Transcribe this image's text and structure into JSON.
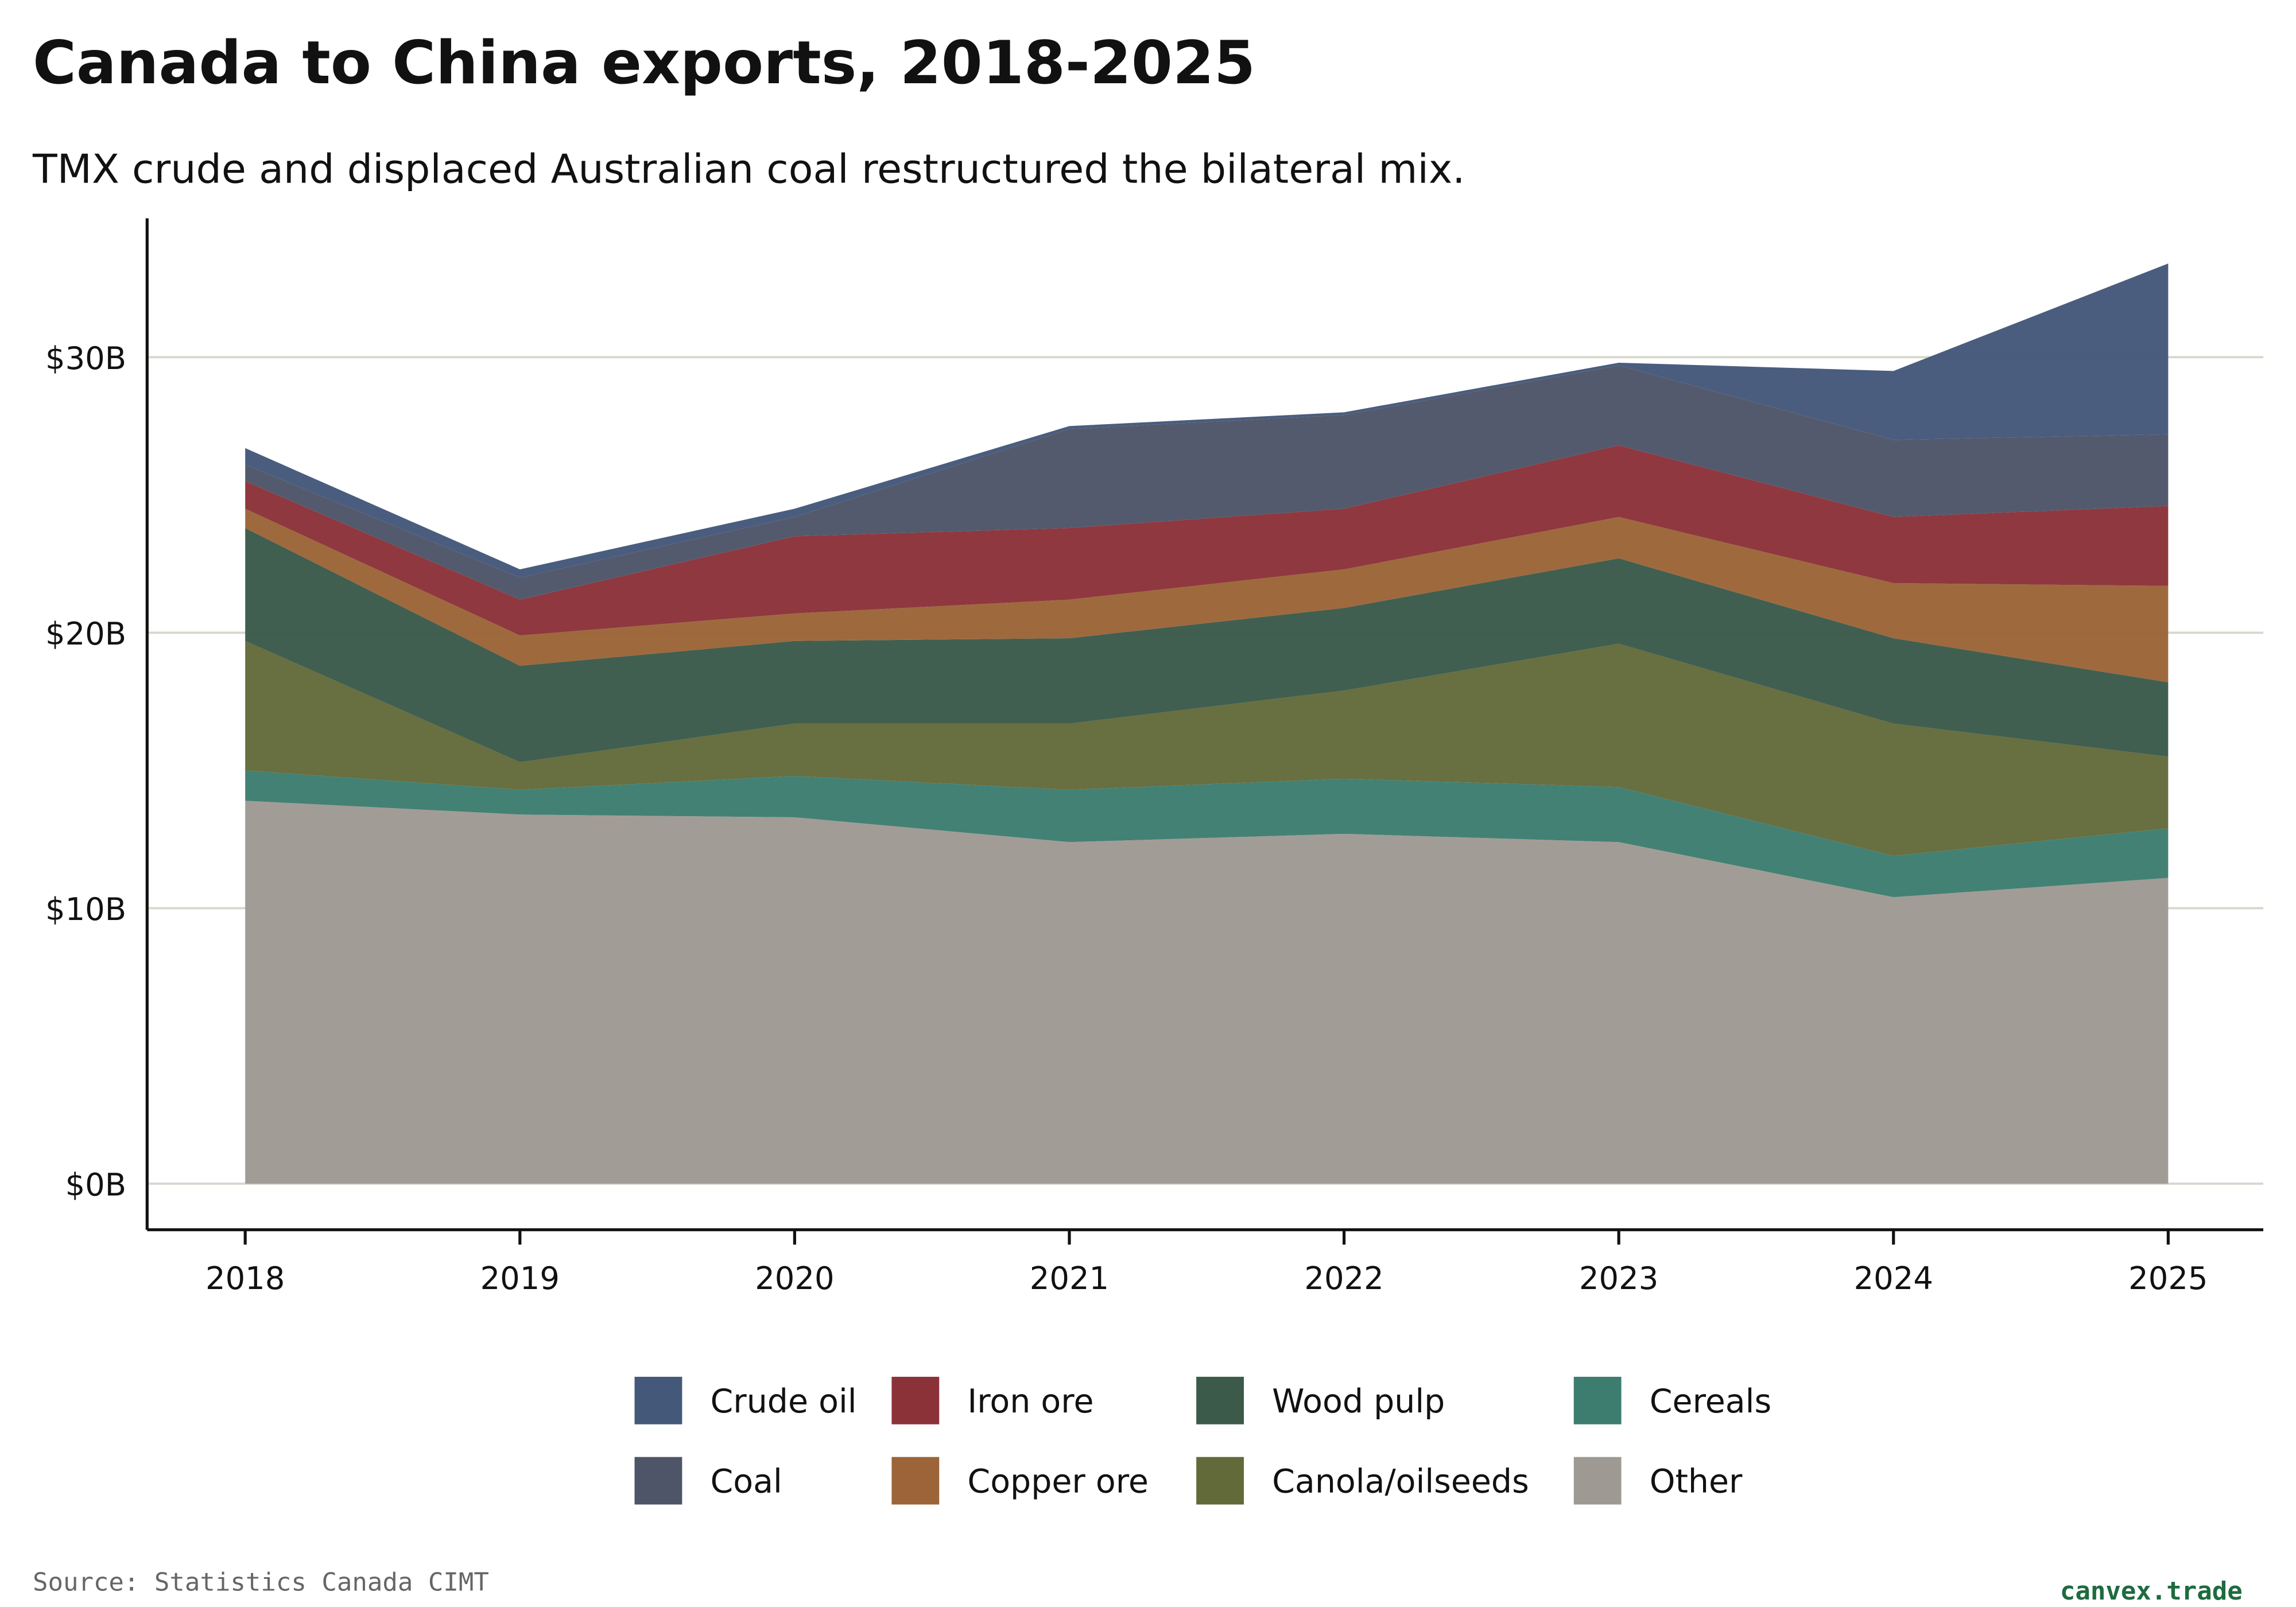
{
  "title": "Canada to China exports, 2018-2025",
  "subtitle": "TMX crude and displaced Australian coal restructured the bilateral mix.",
  "source": "Source: Statistics Canada CIMT",
  "brand": "canvex.trade",
  "chart_data": {
    "type": "area",
    "stacked": true,
    "title": "Canada to China exports, 2018-2025",
    "xlabel": "",
    "ylabel": "",
    "x": [
      "2018",
      "2019",
      "2020",
      "2021",
      "2022",
      "2023",
      "2024",
      "2025"
    ],
    "ylim": [
      0,
      35
    ],
    "yticks": [
      0,
      10,
      20,
      30
    ],
    "ytick_labels": [
      "$0B",
      "$10B",
      "$20B",
      "$30B"
    ],
    "unit": "$B",
    "grid": "horizontal",
    "legend": "bottom",
    "legend_order": [
      "Crude oil",
      "Iron ore",
      "Wood pulp",
      "Cereals",
      "Coal",
      "Copper ore",
      "Canola/oilseeds",
      "Other"
    ],
    "series": [
      {
        "name": "Other",
        "color": "#9e9a93",
        "values": [
          13.9,
          13.4,
          13.3,
          12.4,
          12.7,
          12.4,
          10.4,
          11.1
        ]
      },
      {
        "name": "Cereals",
        "color": "#3d7d70",
        "values": [
          1.1,
          0.9,
          1.5,
          1.9,
          2.0,
          2.0,
          1.5,
          1.8
        ]
      },
      {
        "name": "Canola/oilseeds",
        "color": "#636a3a",
        "values": [
          4.7,
          1.0,
          1.9,
          2.4,
          3.2,
          5.2,
          4.8,
          2.6
        ]
      },
      {
        "name": "Wood pulp",
        "color": "#3b5a4a",
        "values": [
          4.1,
          3.5,
          3.0,
          3.1,
          3.0,
          3.1,
          3.1,
          2.7
        ]
      },
      {
        "name": "Copper ore",
        "color": "#9c6438",
        "values": [
          0.7,
          1.1,
          1.0,
          1.4,
          1.4,
          1.5,
          2.0,
          3.5
        ]
      },
      {
        "name": "Iron ore",
        "color": "#8b3239",
        "values": [
          1.0,
          1.3,
          2.8,
          2.6,
          2.2,
          2.6,
          2.4,
          2.9
        ]
      },
      {
        "name": "Coal",
        "color": "#4e5568",
        "values": [
          0.6,
          0.8,
          0.7,
          3.6,
          3.4,
          2.9,
          2.8,
          2.6
        ]
      },
      {
        "name": "Crude oil",
        "color": "#44587a",
        "values": [
          0.6,
          0.3,
          0.3,
          0.1,
          0.1,
          0.1,
          2.5,
          6.2
        ]
      }
    ]
  }
}
